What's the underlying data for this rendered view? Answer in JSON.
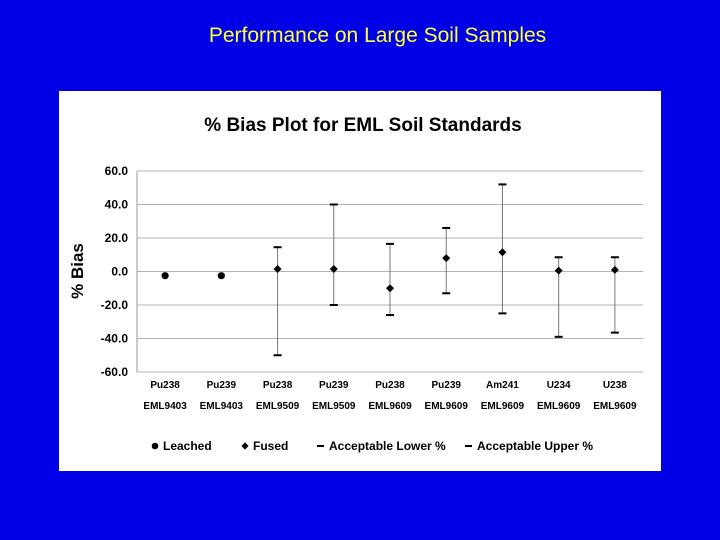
{
  "slide": {
    "title": "Performance on Large Soil Samples",
    "background": "#0000e6",
    "title_color": "#ffff33"
  },
  "chart_data": {
    "type": "scatter",
    "title": "% Bias Plot for EML Soil Standards",
    "ylabel": "% Bias",
    "xlabel": "",
    "ylim": [
      -60,
      60
    ],
    "yticks": [
      60,
      40,
      20,
      0,
      -20,
      -40,
      -60
    ],
    "ytick_labels": [
      "60.0",
      "40.0",
      "20.0",
      "0.0",
      "-20.0",
      "-40.0",
      "-60.0"
    ],
    "grid": true,
    "legend_position": "bottom",
    "categories": [
      {
        "line1": "Pu238",
        "line2": "EML9403"
      },
      {
        "line1": "Pu239",
        "line2": "EML9403"
      },
      {
        "line1": "Pu238",
        "line2": "EML9509"
      },
      {
        "line1": "Pu239",
        "line2": "EML9509"
      },
      {
        "line1": "Pu238",
        "line2": "EML9609"
      },
      {
        "line1": "Pu239",
        "line2": "EML9609"
      },
      {
        "line1": "Am241",
        "line2": "EML9609"
      },
      {
        "line1": "U234",
        "line2": "EML9609"
      },
      {
        "line1": "U238",
        "line2": "EML9609"
      }
    ],
    "series": [
      {
        "name": "Leached",
        "marker": "circle",
        "values": [
          -2.5,
          -2.5,
          null,
          null,
          null,
          null,
          null,
          null,
          null
        ]
      },
      {
        "name": "Fused",
        "marker": "diamond",
        "values": [
          null,
          null,
          1.5,
          1.5,
          -10,
          8,
          11.5,
          0.5,
          1
        ]
      },
      {
        "name": "Acceptable Lower %",
        "marker": "dash",
        "values": [
          null,
          null,
          -50,
          -20,
          -26,
          -13,
          -25,
          -39,
          -36.5
        ]
      },
      {
        "name": "Acceptable Upper %",
        "marker": "dash",
        "values": [
          null,
          null,
          14.5,
          40,
          16.5,
          26,
          52,
          8.5,
          8.5
        ]
      }
    ]
  }
}
